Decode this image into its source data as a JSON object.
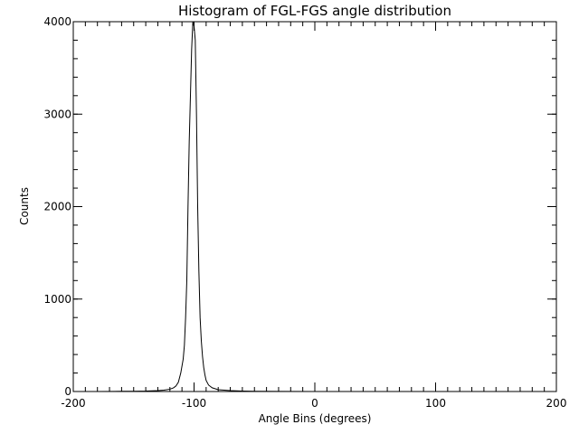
{
  "chart_data": {
    "type": "line",
    "title": "Histogram of FGL-FGS angle distribution",
    "xlabel": "Angle Bins (degrees)",
    "ylabel": "Counts",
    "xlim": [
      -200,
      200
    ],
    "ylim": [
      0,
      4000
    ],
    "x_ticks": [
      -200,
      -100,
      0,
      100,
      200
    ],
    "x_tick_labels": [
      "-200",
      "-100",
      "0",
      "100",
      "200"
    ],
    "y_ticks": [
      0,
      1000,
      2000,
      3000,
      4000
    ],
    "y_tick_labels": [
      "0",
      "1000",
      "2000",
      "3000",
      "4000"
    ],
    "x_minor_step": 10,
    "y_minor_step": 200,
    "grid": false,
    "legend": "none",
    "series": [
      {
        "name": "histogram",
        "x": [
          -180,
          -160,
          -150,
          -140,
          -130,
          -125,
          -120,
          -117,
          -115,
          -113,
          -111,
          -109,
          -108,
          -107,
          -106,
          -105,
          -104,
          -103,
          -102,
          -101,
          -100,
          -99,
          -98,
          -97,
          -96,
          -95,
          -94,
          -93,
          -92,
          -91,
          -90,
          -88,
          -85,
          -80,
          -70,
          -60,
          -50,
          -30,
          0,
          20,
          50,
          100,
          150,
          180
        ],
        "values": [
          0,
          2,
          3,
          5,
          10,
          15,
          25,
          40,
          60,
          100,
          200,
          350,
          500,
          800,
          1200,
          2000,
          2700,
          3200,
          3700,
          4000,
          3950,
          3800,
          3000,
          2000,
          1300,
          800,
          550,
          380,
          260,
          180,
          120,
          70,
          40,
          20,
          10,
          5,
          2,
          1,
          0,
          0,
          0,
          0,
          0,
          0
        ]
      }
    ]
  }
}
